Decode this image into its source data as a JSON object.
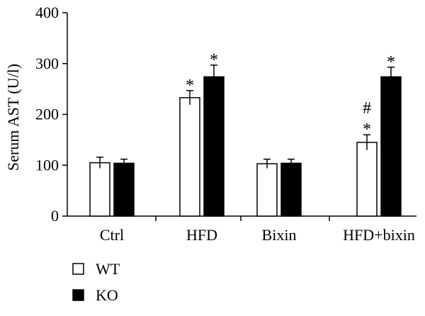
{
  "chart_data": {
    "type": "bar",
    "ylabel": "Serum AST (U/l)",
    "xlabel": "",
    "ylim": [
      0,
      400
    ],
    "yticks": [
      0,
      100,
      200,
      300,
      400
    ],
    "categories": [
      "Ctrl",
      "HFD",
      "Bixin",
      "HFD+bixin"
    ],
    "series": [
      {
        "name": "WT",
        "color": "#ffffff",
        "values": [
          105,
          233,
          103,
          145
        ],
        "errors": [
          11,
          14,
          9,
          15
        ],
        "annotations": [
          "",
          "*",
          "",
          "#\n*"
        ]
      },
      {
        "name": "KO",
        "color": "#000000",
        "values": [
          104,
          274,
          104,
          274
        ],
        "errors": [
          8,
          23,
          8,
          19
        ],
        "annotations": [
          "",
          "*",
          "",
          "*"
        ]
      }
    ],
    "legend_position": "bottom-left",
    "grid": false
  }
}
